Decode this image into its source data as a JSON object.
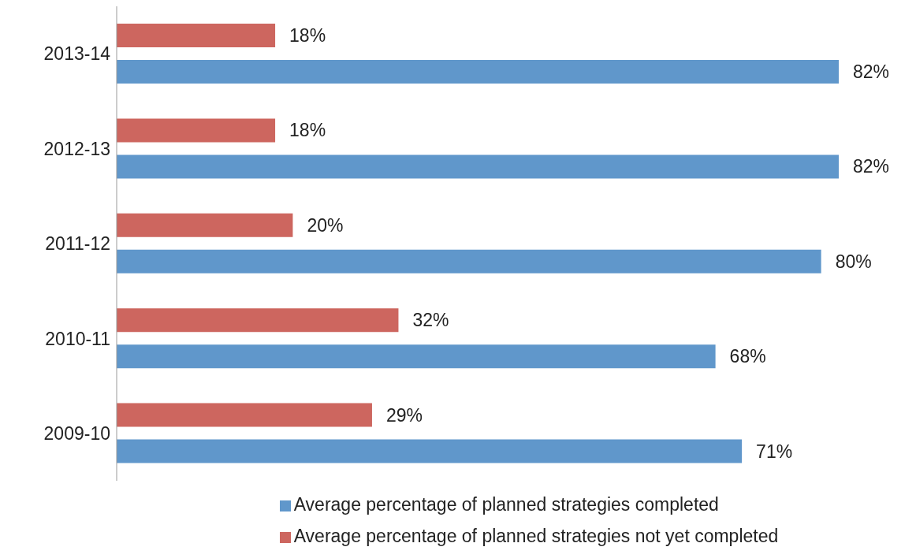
{
  "chart_data": {
    "type": "bar",
    "orientation": "horizontal",
    "categories": [
      "2013-14",
      "2012-13",
      "2011-12",
      "2010-11",
      "2009-10"
    ],
    "series": [
      {
        "name": "Average percentage of planned strategies not yet completed",
        "color": "#cd665f",
        "values": [
          18,
          18,
          20,
          32,
          29
        ],
        "value_labels": [
          "18%",
          "18%",
          "20%",
          "32%",
          "29%"
        ]
      },
      {
        "name": "Average percentage of planned strategies completed",
        "color": "#6097cb",
        "values": [
          82,
          82,
          80,
          68,
          71
        ],
        "value_labels": [
          "82%",
          "82%",
          "80%",
          "68%",
          "71%"
        ]
      }
    ],
    "legend": "bottom",
    "grid": false
  }
}
